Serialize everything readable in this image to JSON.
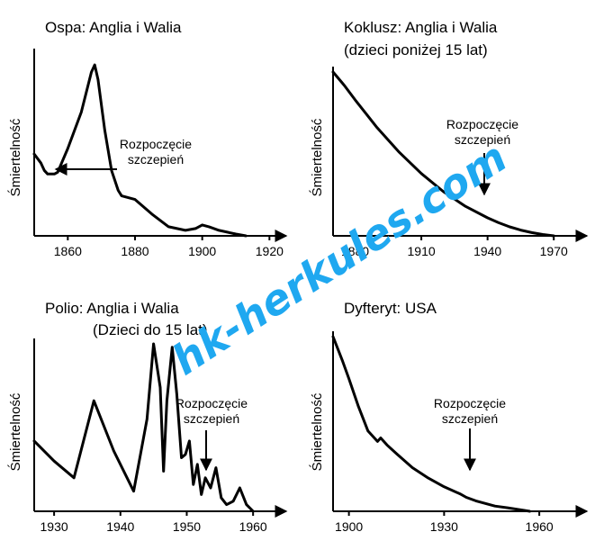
{
  "watermark": "hk-herkules.com",
  "chart_data": [
    {
      "type": "line",
      "title_lines": [
        "Ospa: Anglia i Walia"
      ],
      "ylabel": "Śmiertelność",
      "xlim": [
        1850,
        1925
      ],
      "x_ticks": [
        1860,
        1880,
        1900,
        1920
      ],
      "ylim": [
        0,
        100
      ],
      "series": [
        {
          "x": [
            1850,
            1852,
            1853,
            1854,
            1855,
            1856,
            1857,
            1860,
            1864,
            1867,
            1868,
            1869,
            1871,
            1873,
            1875,
            1876,
            1878,
            1880,
            1885,
            1890,
            1895,
            1898,
            1900,
            1902,
            1905,
            1910,
            1913
          ],
          "y": [
            45,
            40,
            36,
            34,
            34,
            34,
            35,
            48,
            68,
            90,
            94,
            86,
            58,
            36,
            25,
            22,
            21,
            20,
            12,
            5,
            3,
            4,
            6,
            5,
            3,
            1,
            0
          ]
        }
      ],
      "annotation": {
        "lines": [
          "Rozpoczęcie",
          "szczepień"
        ],
        "marker": "arrow-left",
        "x": 1857
      }
    },
    {
      "type": "line",
      "title_lines": [
        "Koklusz: Anglia i Walia",
        "(dzieci poniżej 15 lat)"
      ],
      "ylabel": "Śmiertelność",
      "xlim": [
        1870,
        1985
      ],
      "x_ticks": [
        1880,
        1910,
        1940,
        1970
      ],
      "ylim": [
        0,
        100
      ],
      "series": [
        {
          "x": [
            1870,
            1875,
            1880,
            1890,
            1900,
            1910,
            1920,
            1930,
            1940,
            1945,
            1950,
            1955,
            1960,
            1965,
            1970
          ],
          "y": [
            100,
            92,
            83,
            66,
            51,
            38,
            27,
            18,
            11,
            8,
            5.5,
            3.5,
            2,
            0.8,
            0
          ]
        }
      ],
      "annotation": {
        "lines": [
          "Rozpoczęcie",
          "szczepień"
        ],
        "marker": "arrow-down",
        "x": 1942
      }
    },
    {
      "type": "line",
      "title_lines": [
        "Polio: Anglia i Walia",
        "(Dzieci do 15 lat)"
      ],
      "ylabel": "Śmiertelność",
      "xlim": [
        1927,
        1965
      ],
      "x_ticks": [
        1930,
        1940,
        1950,
        1960
      ],
      "ylim": [
        0,
        100
      ],
      "series": [
        {
          "x": [
            1927,
            1930,
            1933,
            1936,
            1939,
            1942,
            1944,
            1945,
            1946,
            1946.5,
            1947,
            1947.8,
            1948.5,
            1949.2,
            1949.8,
            1950.4,
            1951,
            1951.6,
            1952.2,
            1952.8,
            1953.6,
            1954.4,
            1955.2,
            1956,
            1957,
            1958,
            1959,
            1960
          ],
          "y": [
            42,
            30,
            20,
            66,
            36,
            12,
            55,
            100,
            74,
            24,
            66,
            98,
            70,
            32,
            34,
            42,
            16,
            28,
            10,
            20,
            14,
            26,
            8,
            4,
            6,
            14,
            4,
            0
          ]
        }
      ],
      "annotation": {
        "lines": [
          "Rozpoczęcie",
          "szczepień"
        ],
        "marker": "arrow-down",
        "x": 1954
      }
    },
    {
      "type": "line",
      "title_lines": [
        "Dyfteryt: USA"
      ],
      "ylabel": "Śmiertelność",
      "xlim": [
        1895,
        1975
      ],
      "x_ticks": [
        1900,
        1930,
        1960
      ],
      "ylim": [
        0,
        100
      ],
      "series": [
        {
          "x": [
            1895,
            1898,
            1900,
            1903,
            1906,
            1909,
            1910,
            1912,
            1915,
            1920,
            1925,
            1930,
            1935,
            1937,
            1940,
            1943,
            1946,
            1950,
            1955,
            1957
          ],
          "y": [
            100,
            86,
            76,
            60,
            46,
            40,
            42,
            38,
            33,
            25,
            19,
            14,
            10,
            8,
            6,
            4.5,
            3,
            2,
            0.6,
            0
          ]
        }
      ],
      "annotation": {
        "lines": [
          "Rozpoczęcie",
          "szczepień"
        ],
        "marker": "arrow-down",
        "x": 1937
      }
    }
  ]
}
